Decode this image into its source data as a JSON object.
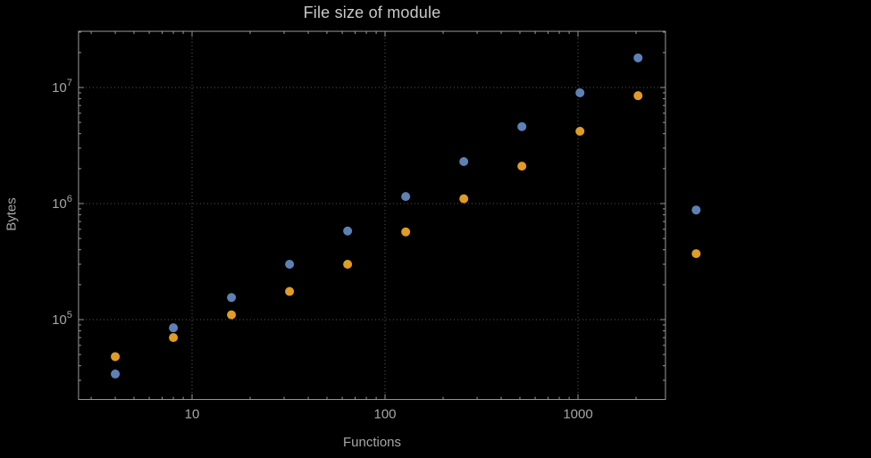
{
  "colors": {
    "background": "#000000",
    "frame": "#999999",
    "grid": "#575757",
    "tick_label": "#a6a6a6",
    "title": "#c9c9c9",
    "axis_label": "#a6a6a6",
    "series_blue": "#5e81b5",
    "series_orange": "#e19c24"
  },
  "chart_data": {
    "type": "scatter",
    "title": "File size of module",
    "xlabel": "Functions",
    "ylabel": "Bytes",
    "x_scale": "log",
    "y_scale": "log",
    "xlim": [
      2.58,
      2840
    ],
    "ylim": [
      20500,
      30500000
    ],
    "grid": "dotted-major",
    "legend": "none",
    "marker_radius": 5,
    "x": [
      4,
      8,
      16,
      32,
      64,
      128,
      256,
      512,
      1024,
      2048,
      4096
    ],
    "series": [
      {
        "name": "blue",
        "color": "#5e81b5",
        "values": [
          34000,
          85000,
          155000,
          300000,
          580000,
          1150000,
          2300000,
          4600000,
          9000000,
          18000000,
          880000
        ]
      },
      {
        "name": "orange",
        "color": "#e19c24",
        "values": [
          48000,
          70000,
          110000,
          175000,
          300000,
          570000,
          1100000,
          2100000,
          4200000,
          8500000,
          370000
        ]
      }
    ],
    "x_ticks": [
      10,
      100,
      1000
    ],
    "x_tick_labels": [
      "10",
      "100",
      "1000"
    ],
    "y_ticks": [
      100000,
      1000000,
      10000000
    ],
    "y_tick_labels": [
      "10^5",
      "10^6",
      "10^7"
    ]
  }
}
